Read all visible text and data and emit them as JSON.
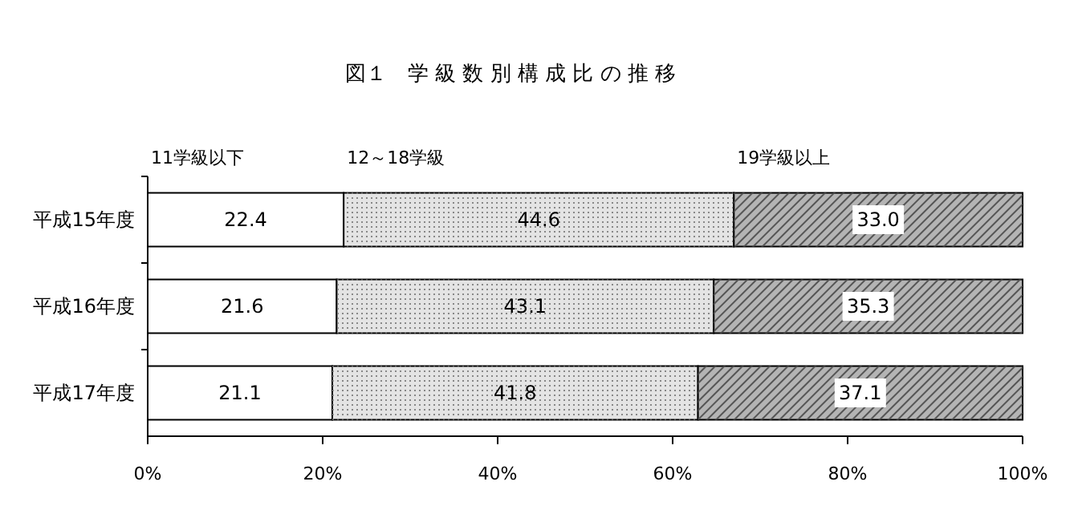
{
  "chart_data": {
    "type": "bar",
    "orientation": "horizontal",
    "stacked": true,
    "title": "図１　学 級 数 別 構 成 比 の 推 移",
    "categories": [
      "平成15年度",
      "平成16年度",
      "平成17年度"
    ],
    "series": [
      {
        "name": "11学級以下",
        "color": "#ffffff",
        "values": [
          22.4,
          21.6,
          21.1
        ],
        "value_labels": [
          "22.4",
          "21.6",
          "21.1"
        ]
      },
      {
        "name": "12～18学級",
        "color": "#e4e4e4",
        "values": [
          44.6,
          43.1,
          41.8
        ],
        "value_labels": [
          "44.6",
          "43.1",
          "41.8"
        ]
      },
      {
        "name": "19学級以上",
        "color": "#b4b4b4",
        "values": [
          33.0,
          35.3,
          37.1
        ],
        "value_labels": [
          "33.0",
          "35.3",
          "37.1"
        ]
      }
    ],
    "xlim": [
      0,
      100
    ],
    "xticks": [
      {
        "value": 0,
        "label": "0%"
      },
      {
        "value": 20,
        "label": "20%"
      },
      {
        "value": 40,
        "label": "40%"
      },
      {
        "value": 60,
        "label": "60%"
      },
      {
        "value": 80,
        "label": "80%"
      },
      {
        "value": 100,
        "label": "100%"
      }
    ],
    "legend": "top",
    "grid": false
  }
}
